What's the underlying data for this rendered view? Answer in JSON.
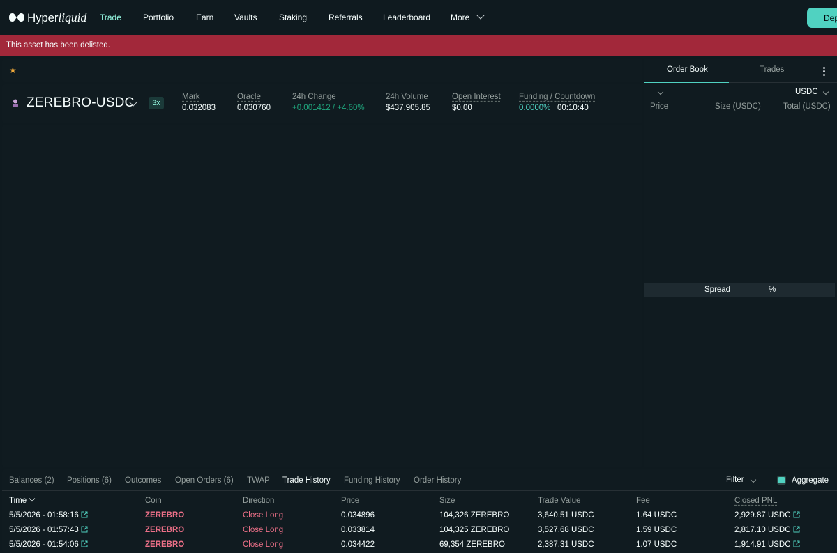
{
  "nav": {
    "logo_text": "Hyper",
    "logo_text_italic": "liquid",
    "items": [
      {
        "label": "Trade",
        "active": true
      },
      {
        "label": "Portfolio"
      },
      {
        "label": "Earn"
      },
      {
        "label": "Vaults"
      },
      {
        "label": "Staking"
      },
      {
        "label": "Referrals"
      },
      {
        "label": "Leaderboard"
      },
      {
        "label": "More"
      }
    ],
    "deposit_label": "Deposit"
  },
  "banner": {
    "text": "This asset has been delisted."
  },
  "market": {
    "pair": "ZEREBRO-USDC",
    "leverage": "3x",
    "stats": [
      {
        "label": "Mark",
        "value": "0.032083"
      },
      {
        "label": "Oracle",
        "value": "0.030760"
      },
      {
        "label": "24h Change",
        "value": "+0.001412 / +4.60%"
      },
      {
        "label": "24h Volume",
        "value": "$437,905.85"
      },
      {
        "label": "Open Interest",
        "value": "$0.00"
      },
      {
        "label": "Funding / Countdown",
        "value": "0.0000%",
        "value2": "00:10:40"
      }
    ]
  },
  "orderbook": {
    "tabs": [
      "Order Book",
      "Trades"
    ],
    "unit": "USDC",
    "headers": [
      "Price",
      "Size (USDC)",
      "Total (USDC)"
    ],
    "spread_label": "Spread",
    "spread_pct": "%"
  },
  "bottom": {
    "tabs": [
      "Balances (2)",
      "Positions (6)",
      "Outcomes",
      "Open Orders (6)",
      "TWAP",
      "Trade History",
      "Funding History",
      "Order History"
    ],
    "active_tab": "Trade History",
    "filter_label": "Filter",
    "aggregate_label": "Aggregate",
    "headers": [
      "Time",
      "Coin",
      "Direction",
      "Price",
      "Size",
      "Trade Value",
      "Fee",
      "Closed PNL"
    ],
    "rows": [
      {
        "time": "5/5/2026 - 01:58:16",
        "coin": "ZEREBRO",
        "direction": "Close Long",
        "price": "0.034896",
        "size": "104,326 ZEREBRO",
        "value": "3,640.51 USDC",
        "fee": "1.64 USDC",
        "pnl": "2,929.87 USDC"
      },
      {
        "time": "5/5/2026 - 01:57:43",
        "coin": "ZEREBRO",
        "direction": "Close Long",
        "price": "0.033814",
        "size": "104,325 ZEREBRO",
        "value": "3,527.68 USDC",
        "fee": "1.59 USDC",
        "pnl": "2,817.10 USDC"
      },
      {
        "time": "5/5/2026 - 01:54:06",
        "coin": "ZEREBRO",
        "direction": "Close Long",
        "price": "0.034422",
        "size": "69,354 ZEREBRO",
        "value": "2,387.31 USDC",
        "fee": "1.07 USDC",
        "pnl": "1,914.91 USDC"
      }
    ]
  }
}
